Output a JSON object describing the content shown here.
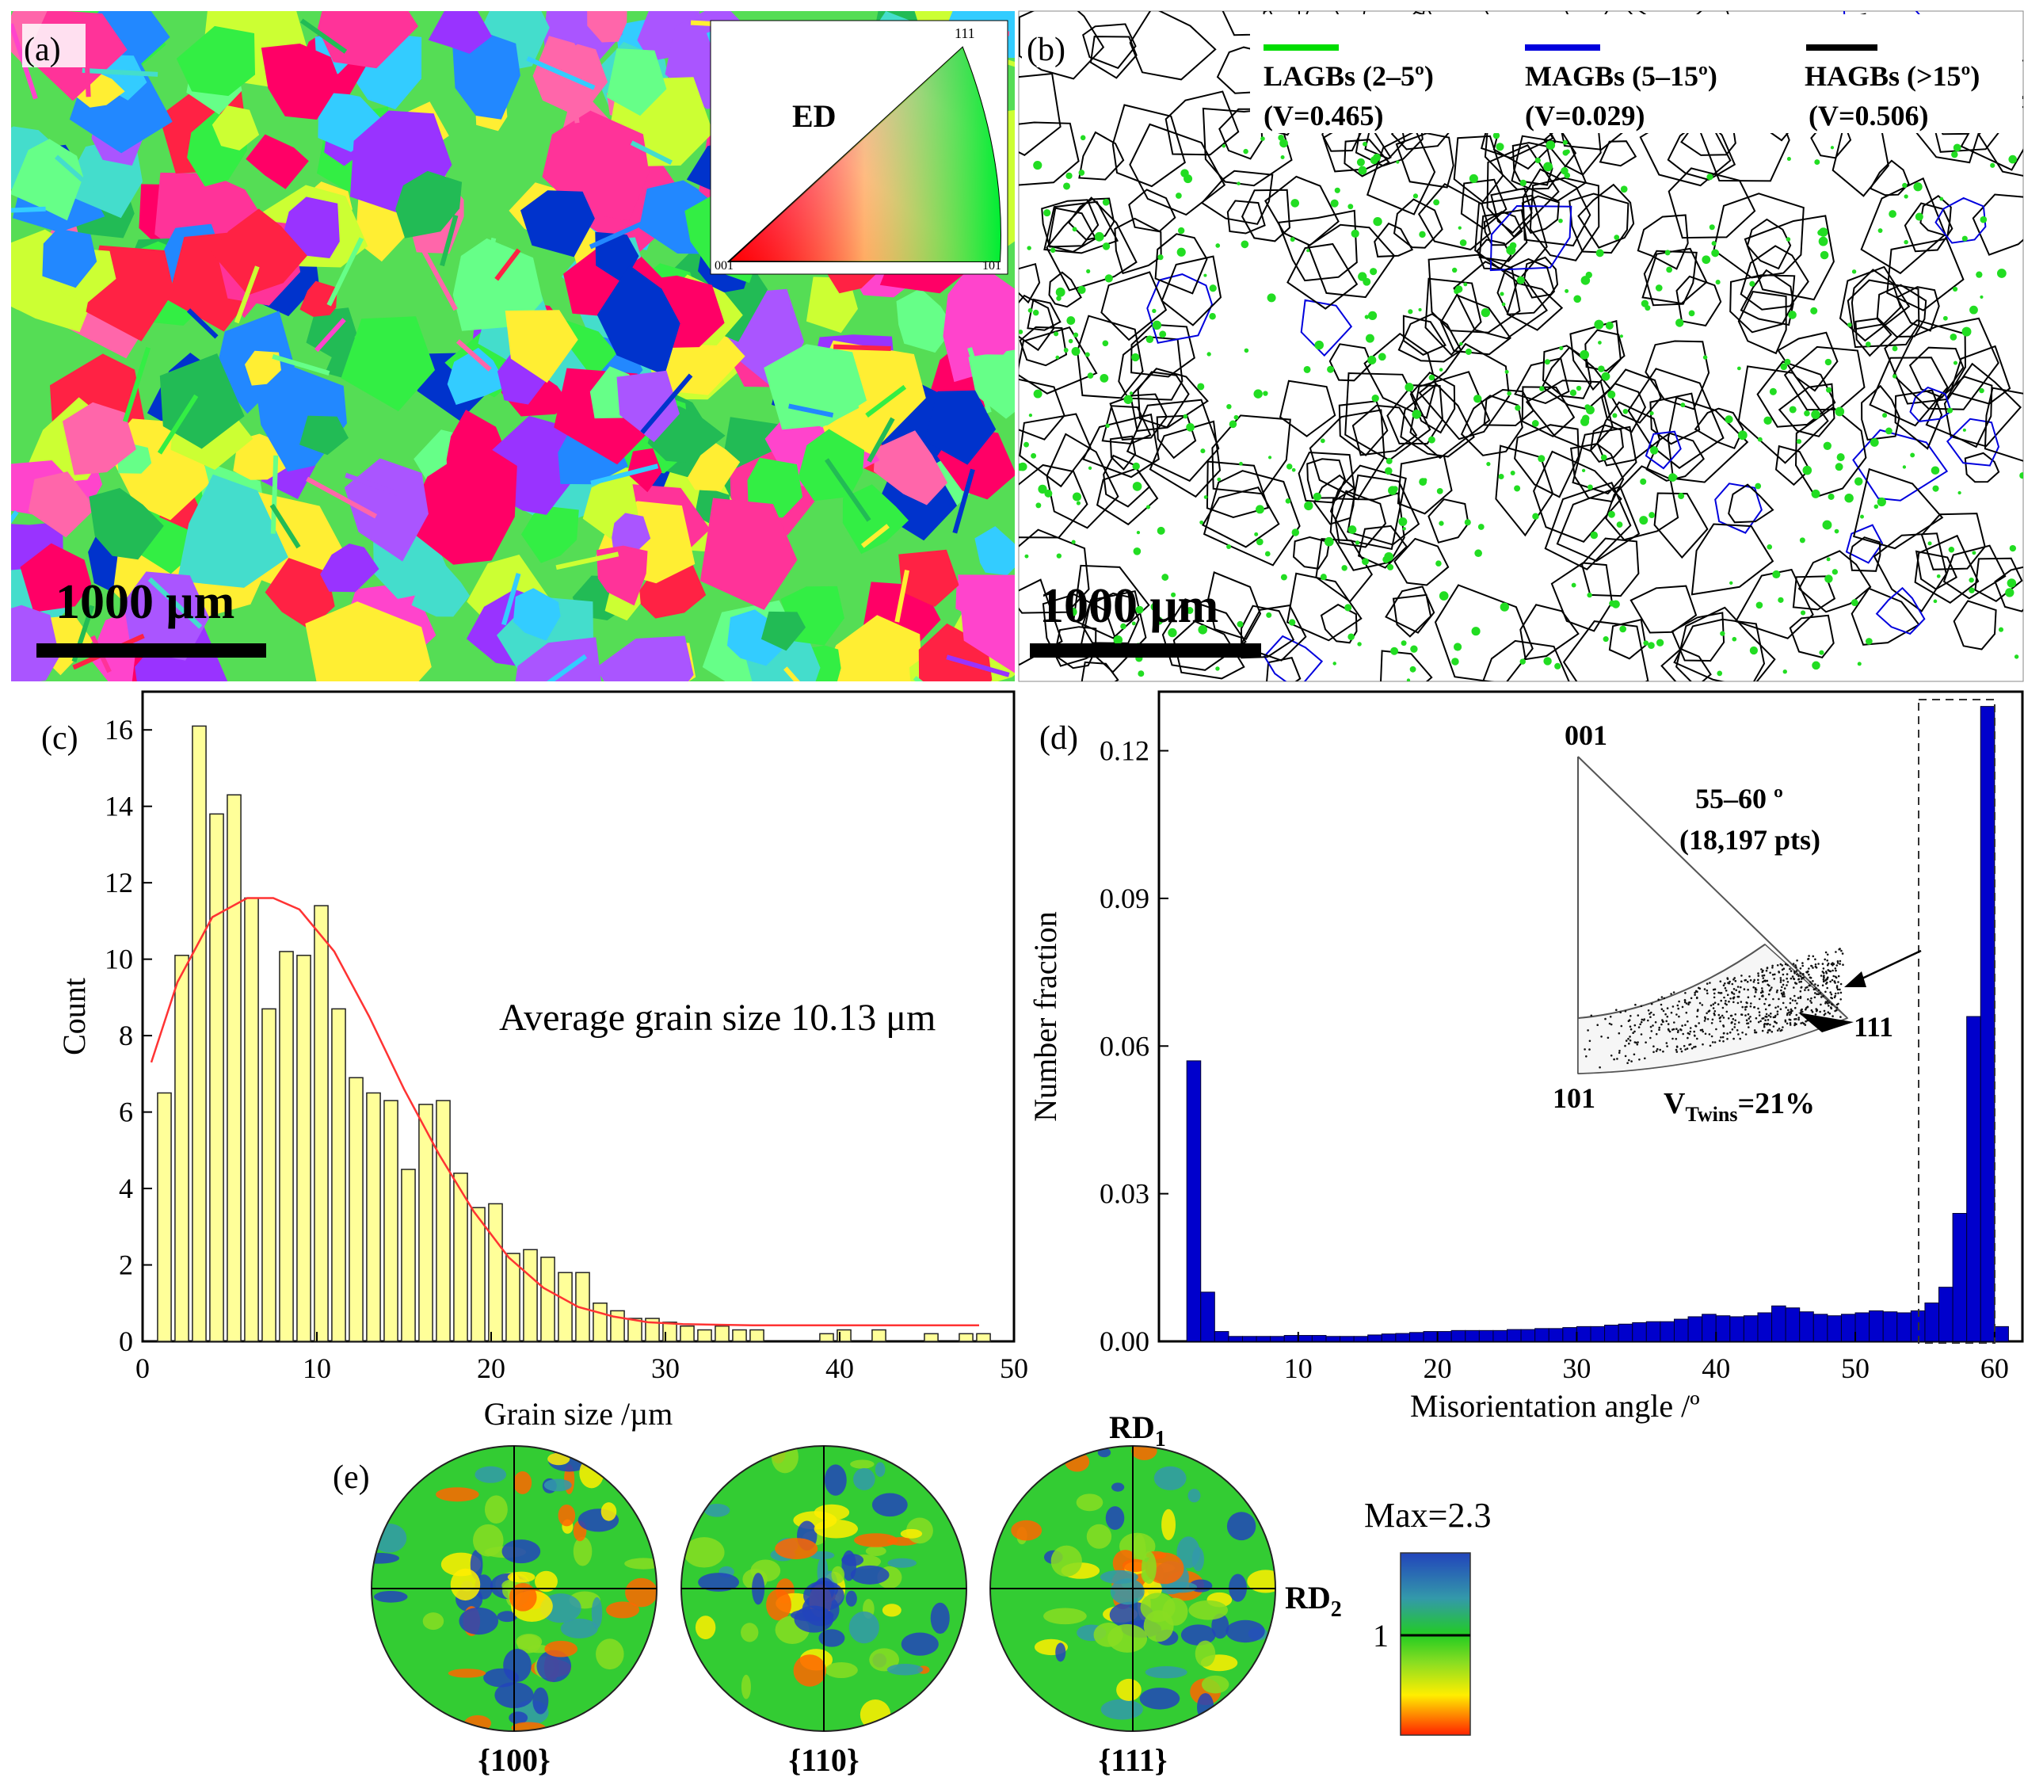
{
  "panels": {
    "a": {
      "label": "(a)",
      "ipf_legend": {
        "title": "ED",
        "corners": [
          "001",
          "101",
          "111"
        ]
      },
      "scale_bar": "1000 μm"
    },
    "b": {
      "label": "(b)",
      "legend": [
        {
          "name": "LAGBs (2–5º)",
          "value": "(V=0.465)",
          "color": "#00dd00"
        },
        {
          "name": "MAGBs (5–15º)",
          "value": "(V=0.029)",
          "color": "#0000dd"
        },
        {
          "name": "HAGBs (>15º)",
          "value": "(V=0.506)",
          "color": "#000000"
        }
      ],
      "scale_bar": "1000 μm"
    },
    "c": {
      "label": "(c)",
      "annotation": "Average grain size 10.13 μm"
    },
    "d": {
      "label": "(d)",
      "inset": {
        "corners": [
          "001",
          "101",
          "111"
        ],
        "range": "55–60 º",
        "points": "(18,197 pts)",
        "v_twins_prefix": "V",
        "v_twins_sub": "Twins",
        "v_twins_value": "=21%"
      }
    },
    "e": {
      "label": "(e)",
      "poles": [
        "{100}",
        "{110}",
        "{111}"
      ],
      "rd1_base": "RD",
      "rd1_sub": "1",
      "rd2_base": "RD",
      "rd2_sub": "2",
      "colorbar_max": "Max=2.3",
      "colorbar_tick": "1"
    }
  },
  "chart_data": [
    {
      "type": "bar",
      "title": "",
      "xlabel": "Grain size /µm",
      "ylabel": "Count",
      "xlim": [
        0,
        50
      ],
      "ylim": [
        0,
        17
      ],
      "xticks": [
        0,
        10,
        20,
        30,
        40,
        50
      ],
      "yticks": [
        0,
        2,
        4,
        6,
        8,
        10,
        12,
        14,
        16
      ],
      "bar_color": "#ffff99",
      "fit_color": "#ff3333",
      "x": [
        1.25,
        2.25,
        3.25,
        4.25,
        5.25,
        6.25,
        7.25,
        8.25,
        9.25,
        10.25,
        11.25,
        12.25,
        13.25,
        14.25,
        15.25,
        16.25,
        17.25,
        18.25,
        19.25,
        20.25,
        21.25,
        22.25,
        23.25,
        24.25,
        25.25,
        26.25,
        27.25,
        28.25,
        29.25,
        30.25,
        31.25,
        32.25,
        33.25,
        34.25,
        35.25,
        39.25,
        40.25,
        42.25,
        45.25,
        47.25,
        48.25
      ],
      "values": [
        6.5,
        10.1,
        16.1,
        13.8,
        14.3,
        11.6,
        8.7,
        10.2,
        10.1,
        11.4,
        8.7,
        6.9,
        6.5,
        6.3,
        4.5,
        6.2,
        6.3,
        4.4,
        3.5,
        3.6,
        2.3,
        2.4,
        2.2,
        1.8,
        1.8,
        1.0,
        0.8,
        0.6,
        0.6,
        0.5,
        0.4,
        0.3,
        0.4,
        0.3,
        0.3,
        0.2,
        0.3,
        0.3,
        0.2,
        0.2,
        0.2
      ],
      "fit_curve": {
        "x": [
          0.5,
          2,
          4,
          6,
          7.5,
          9,
          11,
          13,
          15,
          17,
          19,
          21,
          23,
          25,
          27,
          29,
          31,
          35,
          40,
          48
        ],
        "y": [
          7.3,
          9.4,
          11.1,
          11.6,
          11.6,
          11.3,
          10.2,
          8.5,
          6.6,
          4.9,
          3.4,
          2.2,
          1.4,
          0.9,
          0.65,
          0.5,
          0.45,
          0.42,
          0.42,
          0.42
        ]
      }
    },
    {
      "type": "bar",
      "title": "",
      "xlabel": "Misorientation angle /º",
      "ylabel": "Number fraction",
      "xlim": [
        0,
        62
      ],
      "ylim": [
        0,
        0.132
      ],
      "xticks": [
        10,
        20,
        30,
        40,
        50,
        60
      ],
      "yticks": [
        0.0,
        0.03,
        0.06,
        0.09,
        0.12
      ],
      "bar_color": "#0000cc",
      "x": [
        2.5,
        3.5,
        4.5,
        5.5,
        6.5,
        7.5,
        8.5,
        9.5,
        10.5,
        11.5,
        12.5,
        13.5,
        14.5,
        15.5,
        16.5,
        17.5,
        18.5,
        19.5,
        20.5,
        21.5,
        22.5,
        23.5,
        24.5,
        25.5,
        26.5,
        27.5,
        28.5,
        29.5,
        30.5,
        31.5,
        32.5,
        33.5,
        34.5,
        35.5,
        36.5,
        37.5,
        38.5,
        39.5,
        40.5,
        41.5,
        42.5,
        43.5,
        44.5,
        45.5,
        46.5,
        47.5,
        48.5,
        49.5,
        50.5,
        51.5,
        52.5,
        53.5,
        54.5,
        55.5,
        56.5,
        57.5,
        58.5,
        59.5,
        60.5
      ],
      "values": [
        0.057,
        0.01,
        0.002,
        0.001,
        0.001,
        0.001,
        0.001,
        0.0012,
        0.0012,
        0.0012,
        0.001,
        0.001,
        0.001,
        0.0013,
        0.0015,
        0.0016,
        0.0018,
        0.002,
        0.002,
        0.0022,
        0.0022,
        0.0022,
        0.0022,
        0.0024,
        0.0024,
        0.0026,
        0.0026,
        0.0028,
        0.003,
        0.003,
        0.0033,
        0.0035,
        0.0038,
        0.004,
        0.004,
        0.0045,
        0.005,
        0.0055,
        0.0052,
        0.005,
        0.0052,
        0.0058,
        0.0072,
        0.0068,
        0.006,
        0.0055,
        0.0052,
        0.0055,
        0.0058,
        0.0062,
        0.006,
        0.0058,
        0.0062,
        0.0078,
        0.011,
        0.026,
        0.066,
        0.129,
        0.003
      ]
    }
  ]
}
